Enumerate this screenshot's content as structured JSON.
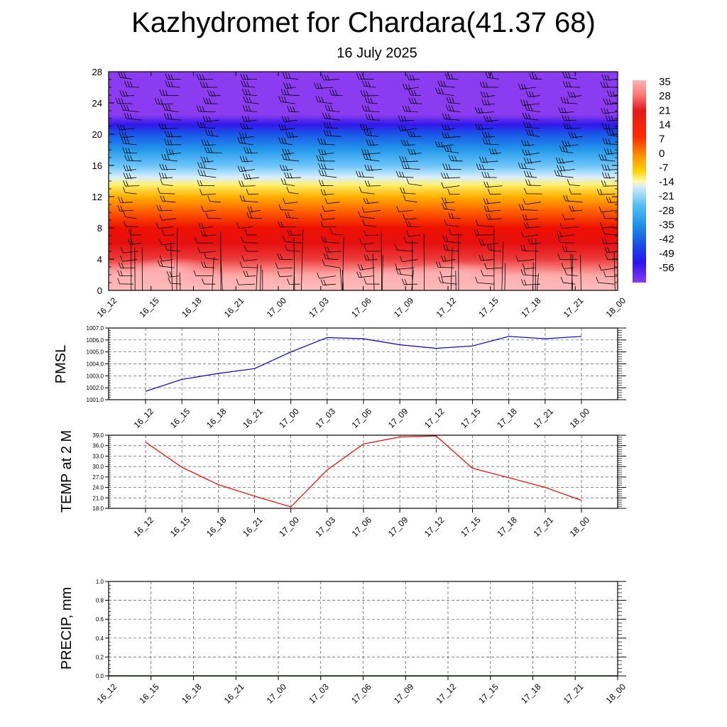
{
  "header": {
    "title": "Kazhydromet for Chardara(41.37 68)",
    "subtitle": "16 July 2025"
  },
  "chart_data": [
    {
      "type": "heatmap",
      "title": "",
      "y_ticks": [
        "0",
        "4",
        "8",
        "12",
        "16",
        "20",
        "24",
        "28"
      ],
      "ylim": [
        0,
        28
      ],
      "x_ticks": [
        "16_12",
        "16_15",
        "16_18",
        "16_21",
        "17_00",
        "17_03",
        "17_06",
        "17_09",
        "17_12",
        "17_15",
        "17_18",
        "17_21",
        "18_00"
      ],
      "colorbar_labels": [
        "35",
        "28",
        "21",
        "14",
        "7",
        "0",
        "-7",
        "-14",
        "-21",
        "-28",
        "-35",
        "-42",
        "-49",
        "-56"
      ],
      "level_temperature": [
        {
          "y": 0,
          "value": 35
        },
        {
          "y": 2,
          "value": 33
        },
        {
          "y": 4,
          "value": 28
        },
        {
          "y": 6,
          "value": 24
        },
        {
          "y": 8,
          "value": 19
        },
        {
          "y": 10,
          "value": 12
        },
        {
          "y": 12,
          "value": 6
        },
        {
          "y": 13.5,
          "value": 0
        },
        {
          "y": 14.5,
          "value": -14
        },
        {
          "y": 16,
          "value": -24
        },
        {
          "y": 18,
          "value": -33
        },
        {
          "y": 20,
          "value": -43
        },
        {
          "y": 21.2,
          "value": -53
        },
        {
          "y": 22.5,
          "value": -60
        },
        {
          "y": 28,
          "value": -60
        }
      ],
      "legend": "right",
      "wind_barbs": true
    },
    {
      "type": "line",
      "ylabel": "PMSL",
      "ylim": [
        1001.0,
        1007.0
      ],
      "y_ticks": [
        "1001.0",
        "1002.0",
        "1003.0",
        "1004.0",
        "1005.0",
        "1006.0",
        "1007.0"
      ],
      "categories": [
        "16_12",
        "16_15",
        "16_18",
        "16_21",
        "17_00",
        "17_03",
        "17_06",
        "17_09",
        "17_12",
        "17_15",
        "17_18",
        "17_21",
        "18_00"
      ],
      "values": [
        1001.7,
        1002.7,
        1003.2,
        1003.6,
        1005.0,
        1006.2,
        1006.1,
        1005.6,
        1005.3,
        1005.5,
        1006.3,
        1006.1,
        1006.3
      ],
      "color": "#0000cc",
      "grid": true
    },
    {
      "type": "line",
      "ylabel": "TEMP at 2 M",
      "ylim": [
        18.0,
        39.0
      ],
      "y_ticks": [
        "18.0",
        "21.0",
        "24.0",
        "27.0",
        "30.0",
        "33.0",
        "36.0",
        "39.0"
      ],
      "categories": [
        "16_12",
        "16_15",
        "16_18",
        "16_21",
        "17_00",
        "17_03",
        "17_06",
        "17_09",
        "17_12",
        "17_15",
        "17_18",
        "17_21",
        "18_00"
      ],
      "values": [
        37.0,
        29.8,
        24.8,
        21.5,
        18.4,
        29.0,
        36.5,
        38.5,
        38.8,
        29.5,
        26.8,
        24.0,
        20.3
      ],
      "color": "#ee0000",
      "grid": true
    },
    {
      "type": "line",
      "ylabel": "PRECIP, mm",
      "ylim": [
        0.0,
        1.0
      ],
      "y_ticks": [
        "0.0",
        "0.2",
        "0.4",
        "0.6",
        "0.8",
        "1.0"
      ],
      "categories": [
        "16_12",
        "16_15",
        "16_18",
        "16_21",
        "17_00",
        "17_03",
        "17_06",
        "17_09",
        "17_12",
        "17_15",
        "17_18",
        "17_21",
        "18_00"
      ],
      "values": [
        0,
        0,
        0,
        0,
        0,
        0,
        0,
        0,
        0,
        0,
        0,
        0,
        0
      ],
      "color": "#006400",
      "grid": true
    }
  ]
}
